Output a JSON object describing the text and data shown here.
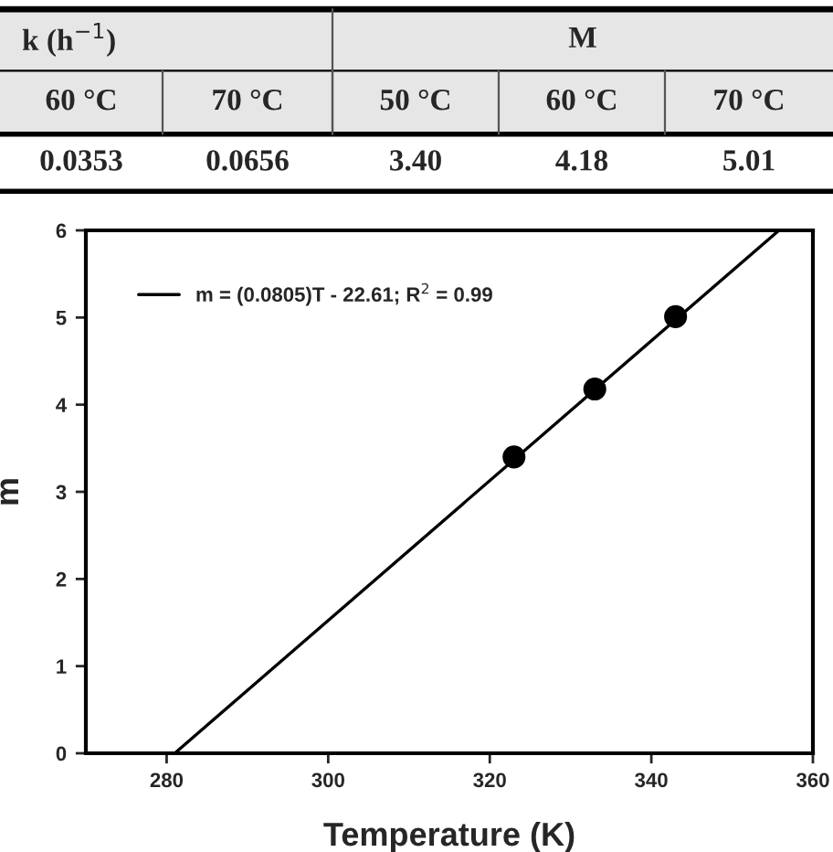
{
  "chart_data": [
    {
      "type": "other",
      "annotations": [
        "k (h$^{−1}$)",
        "M",
        "60 °C",
        "70 °C",
        "50 °C",
        "60 °C",
        "70 °C",
        "0.0353",
        "0.0656",
        "3.40",
        "4.18",
        "5.01"
      ]
    },
    {
      "type": "scatter",
      "xlabel": "Temperature (K)",
      "ylabel": "m",
      "xlim": [
        270,
        360
      ],
      "xticks": [
        280,
        300,
        320,
        340,
        360
      ],
      "ylim": [
        0,
        6
      ],
      "yticks": [
        0,
        1,
        2,
        3,
        4,
        5,
        6
      ],
      "legend": "top left",
      "marker": "circle",
      "series": [
        {
          "color": "#000000",
          "x": [
            323,
            333,
            343
          ],
          "values": [
            3.4,
            4.18,
            5.01
          ]
        },
        {
          "type": "line",
          "name": "m = (0.0805)T - 22.61; R$^{2}$ = 0.99",
          "color": "#000000",
          "x": [
            281,
            355.8
          ],
          "values": [
            0,
            6
          ],
          "marker": "none"
        }
      ]
    }
  ]
}
